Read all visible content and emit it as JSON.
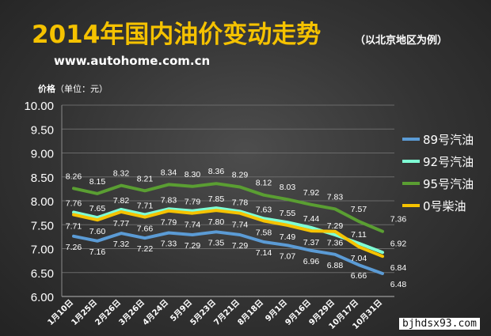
{
  "header": {
    "title": "2014年国内油价变动走势",
    "subtitle": "（以北京地区为例）",
    "site": "www.autohome.com.cn"
  },
  "watermark": "bjhdsx93.com",
  "chart_data": {
    "type": "line",
    "ylabel_main": "价格",
    "ylabel_unit": "（单位：元）",
    "ylim": [
      6.0,
      10.0
    ],
    "yticks": [
      "10.00",
      "9.50",
      "9.00",
      "8.50",
      "8.00",
      "7.50",
      "7.00",
      "6.50",
      "6.00"
    ],
    "grid": true,
    "legend_position": "right",
    "categories": [
      "1月10日",
      "1月25日",
      "2月26日",
      "3月26日",
      "4月24日",
      "5月9日",
      "5月23日",
      "7月21日",
      "8月18日",
      "9月1日",
      "9月16日",
      "9月29日",
      "10月17日",
      "10月31日"
    ],
    "series": [
      {
        "name": "89号汽油",
        "color": "#5b9bd5",
        "values": [
          7.26,
          7.16,
          7.32,
          7.22,
          7.33,
          7.29,
          7.35,
          7.29,
          7.14,
          7.07,
          6.96,
          6.88,
          6.66,
          6.48
        ]
      },
      {
        "name": "92号汽油",
        "color": "#7fffd4",
        "values": [
          7.76,
          7.65,
          7.82,
          7.71,
          7.83,
          7.79,
          7.85,
          7.78,
          7.63,
          7.55,
          7.44,
          7.29,
          7.11,
          6.92
        ]
      },
      {
        "name": "95号汽油",
        "color": "#5a9e32",
        "values": [
          8.26,
          8.15,
          8.32,
          8.21,
          8.34,
          8.3,
          8.36,
          8.29,
          8.12,
          8.03,
          7.92,
          7.83,
          7.57,
          7.36
        ]
      },
      {
        "name": "0号柴油",
        "color": "#f5c200",
        "values": [
          7.71,
          7.6,
          7.77,
          7.66,
          7.79,
          7.74,
          7.8,
          7.74,
          7.58,
          7.49,
          7.37,
          7.36,
          7.04,
          6.84
        ]
      }
    ]
  }
}
